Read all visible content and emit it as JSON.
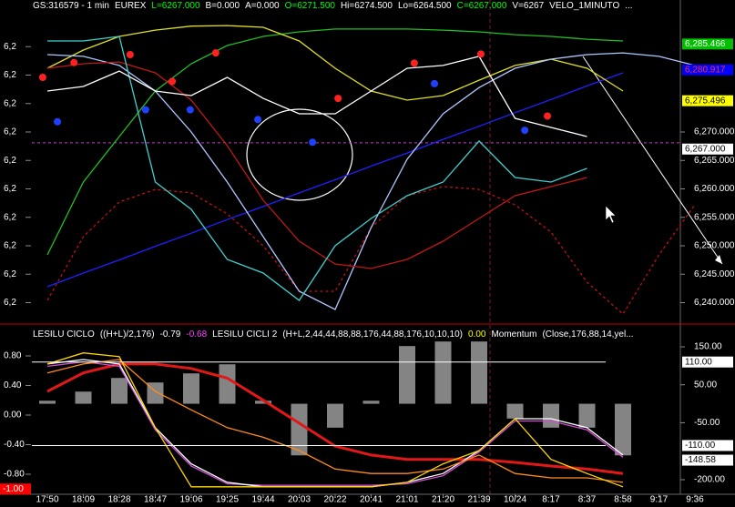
{
  "chart_data": [
    {
      "type": "line",
      "header": [
        {
          "text": "GS:316579 - 1 min",
          "color": "#ffffff"
        },
        {
          "text": "EUREX",
          "color": "#ffffff"
        },
        {
          "text": "L=6267.000",
          "color": "#00ff00"
        },
        {
          "text": "B=0.000",
          "color": "#ffffff"
        },
        {
          "text": "A=0.000",
          "color": "#ffffff"
        },
        {
          "text": "O=6271.500",
          "color": "#00ff00"
        },
        {
          "text": "Hi=6274.500",
          "color": "#ffffff"
        },
        {
          "text": "Lo=6264.500",
          "color": "#ffffff"
        },
        {
          "text": "C=6267.000",
          "color": "#00ff00"
        },
        {
          "text": "V=6267",
          "color": "#ffffff"
        },
        {
          "text": "VELO_1MINUTO",
          "color": "#ffffff"
        },
        {
          "text": "...",
          "color": "#ffffff"
        }
      ],
      "ylim": [
        6236.4,
        6293.2
      ],
      "yticks_left": [
        {
          "value": 6285,
          "label": "6,2"
        },
        {
          "value": 6280,
          "label": "6,2"
        },
        {
          "value": 6275,
          "label": "6,2"
        },
        {
          "value": 6270,
          "label": "6,2"
        },
        {
          "value": 6265,
          "label": "6,2"
        },
        {
          "value": 6260,
          "label": "6,2"
        },
        {
          "value": 6255,
          "label": "6,2"
        },
        {
          "value": 6250,
          "label": "6,2"
        },
        {
          "value": 6245,
          "label": "6,2"
        },
        {
          "value": 6240,
          "label": "6,2"
        }
      ],
      "yticks": [
        {
          "value": 6270,
          "label": "6,270.000"
        },
        {
          "value": 6265,
          "label": "6,265.000"
        },
        {
          "value": 6260,
          "label": "6,260.000"
        },
        {
          "value": 6255,
          "label": "6,255.000"
        },
        {
          "value": 6250,
          "label": "6,250.000"
        },
        {
          "value": 6245,
          "label": "6,245.000"
        },
        {
          "value": 6240,
          "label": "6,240.000"
        }
      ],
      "price_labels": [
        {
          "value": 6285.466,
          "label": "6,285.466",
          "color": "#00c000",
          "text_color": "#ffffff"
        },
        {
          "value": 6280.917,
          "label": "6,280.917",
          "color": "#0000ff",
          "text_color": "#ff3030"
        },
        {
          "value": 6275.496,
          "label": "6,275.496",
          "color": "#ffff00",
          "text_color": "#000000"
        },
        {
          "value": 6267.0,
          "label": "6,267.000",
          "color": "#ffffff",
          "text_color": "#000000"
        }
      ],
      "hline": {
        "value": 6268.1,
        "color": "#c040c0"
      },
      "series": [
        {
          "color": "#c01010",
          "dash": true,
          "values": [
            6240.4,
            6251.6,
            6257.7,
            6259.9,
            6259.3,
            6255.6,
            6250,
            6242,
            6242,
            6253.2,
            6258.8,
            6260.4,
            6259.9,
            6257.2,
            6252.4,
            6243.6,
            6238,
            6248.4,
            6257.2
          ]
        },
        {
          "color": "#2020ff",
          "values": [
            6242.8,
            6245.2,
            6247.5,
            6249.9,
            6252.2,
            6254.6,
            6256.9,
            6259.3,
            6261.6,
            6264,
            6266.3,
            6268.7,
            6271,
            6273.4,
            6275.7,
            6278.1,
            6280.4,
            null,
            null
          ]
        },
        {
          "color": "#20c020",
          "values": [
            6248.4,
            6261.2,
            6269.2,
            6277.2,
            6282,
            6285.2,
            6286.8,
            6287.6,
            6288.1,
            6288.1,
            6288.1,
            6287.9,
            6287.6,
            6287.1,
            6286.8,
            6286.3,
            6286,
            null,
            null
          ]
        },
        {
          "color": "#e0e020",
          "values": [
            6281.2,
            6284.4,
            6286.8,
            6287.9,
            6288.6,
            6288.7,
            6288.4,
            6286,
            6281.2,
            6277.2,
            6275.6,
            6276.4,
            6279.1,
            6281.7,
            6282.8,
            6281.2,
            6277.2,
            null,
            null
          ]
        },
        {
          "color": "#b0c8ff",
          "values": [
            6283.6,
            6283.3,
            6281.7,
            6277.2,
            6270,
            6261.2,
            6251.6,
            6242,
            6238.8,
            6253.2,
            6265.2,
            6273.2,
            6277.8,
            6281.2,
            6282.8,
            6283.6,
            6283.9,
            6283.3,
            6281.7
          ]
        },
        {
          "color": "#c01818",
          "values": [
            6281.2,
            6282,
            6282.3,
            6280.4,
            6275.6,
            6267.6,
            6258,
            6250.8,
            6246.8,
            6246,
            6247.6,
            6250.8,
            6254.8,
            6258.8,
            6260.4,
            6262,
            null,
            null,
            null
          ]
        },
        {
          "color": "#40d0d0",
          "values": [
            6286,
            6286,
            6286.8,
            6261.2,
            6256.4,
            6247.6,
            6245.2,
            6240.4,
            6250,
            6254.8,
            6258.8,
            6261.2,
            6268.4,
            6262,
            6261.2,
            6263.6,
            null,
            null,
            null
          ]
        },
        {
          "color": "#ffffff",
          "values": [
            6277.2,
            6278,
            6280.7,
            6277.2,
            6276.4,
            6279.6,
            6275.9,
            6273.2,
            6273.2,
            6277.2,
            6281.2,
            6281.7,
            6283.3,
            6272.4,
            6270.8,
            6269.2,
            null,
            null,
            null
          ]
        }
      ],
      "points": [
        {
          "color": "#ff2020",
          "x": [
            -0.13,
            0.74,
            2.3,
            3.47,
            4.68,
            8.08,
            10.2,
            12.05,
            13.9
          ],
          "values": [
            6279.6,
            6282.2,
            6283.6,
            6278.9,
            6283.9,
            6275.9,
            6282.1,
            6283.7,
            6272.8
          ]
        },
        {
          "color": "#2040ff",
          "x": [
            0.28,
            2.73,
            3.97,
            5.85,
            7.37,
            10.76,
            13.27
          ],
          "values": [
            6271.8,
            6273.9,
            6273.9,
            6272.2,
            6268.2,
            6278.5,
            6270.3
          ]
        }
      ]
    },
    {
      "type": "line",
      "header": [
        {
          "text": "LESILU CICLO",
          "color": "#ffffff"
        },
        {
          "text": "((H+L)/2,176)",
          "color": "#ffffff"
        },
        {
          "text": "-0.79",
          "color": "#ffffff"
        },
        {
          "text": "-0.68",
          "color": "#ff40ff"
        },
        {
          "text": "LESILU CICLI 2",
          "color": "#ffffff"
        },
        {
          "text": "(H+L,2,44,44,88,88,176,44,88,176,10,10,10)",
          "color": "#ffffff"
        },
        {
          "text": "0.00",
          "color": "#ffff00"
        },
        {
          "text": "Momentum",
          "color": "#ffffff"
        },
        {
          "text": "(Close,176,88,14,yel...",
          "color": "#ffffff"
        }
      ],
      "categories": [
        "17:50",
        "18:09",
        "18:28",
        "18:47",
        "19:06",
        "19:25",
        "19:44",
        "20:03",
        "20:22",
        "20:41",
        "21:01",
        "21:20",
        "21:39",
        "10/24",
        "8:17",
        "8:37",
        "8:58",
        "9:17",
        "9:36"
      ],
      "ylim": [
        -1.071,
        1.206
      ],
      "yticks": [
        {
          "value": 0.8,
          "label": "0.80"
        },
        {
          "value": 0.4,
          "label": "0.40"
        },
        {
          "value": 0,
          "label": "0.00"
        },
        {
          "value": -0.4,
          "label": "-0.40"
        },
        {
          "value": -0.8,
          "label": "-0.80"
        }
      ],
      "y2lim": [
        -238.4,
        205.2
      ],
      "y2ticks": [
        {
          "value": 150,
          "label": "150.00"
        },
        {
          "value": 50,
          "label": "50.00"
        },
        {
          "value": -50,
          "label": "-50.00"
        },
        {
          "value": -200,
          "label": "-200.00"
        }
      ],
      "price_labels": [
        {
          "value": 110,
          "label": "110.00",
          "axis": "y2",
          "color": "#ffffff",
          "text_color": "#000000",
          "line": true
        },
        {
          "value": -110,
          "label": "-110.00",
          "axis": "y2",
          "color": "#ffffff",
          "text_color": "#000000",
          "line": true
        },
        {
          "value": -148.58,
          "label": "-148.58",
          "axis": "y2",
          "color": "#ffffff",
          "text_color": "#000000"
        },
        {
          "value": -1.0,
          "label": "-1.00",
          "side": "left",
          "color": "#ff0000",
          "text_color": "#ffffff"
        }
      ],
      "series": [
        {
          "type": "bar",
          "axis": "y2",
          "color": "#b0b0b0",
          "values": [
            8,
            32,
            68,
            56,
            80,
            104,
            8,
            -136,
            -63,
            8,
            152,
            164,
            164,
            -39,
            -63,
            -63,
            -136,
            null,
            null
          ]
        },
        {
          "color": "#e01818",
          "width": 3,
          "values": [
            0.32,
            0.57,
            0.69,
            0.69,
            0.63,
            0.5,
            0.2,
            -0.11,
            -0.42,
            -0.54,
            -0.6,
            -0.6,
            -0.6,
            -0.64,
            -0.69,
            -0.73,
            -0.79,
            null,
            null
          ]
        },
        {
          "color": "#d050d0",
          "values": [
            0.66,
            0.72,
            0.66,
            -0.2,
            -0.69,
            -0.93,
            -0.95,
            -0.95,
            -0.95,
            -0.95,
            -0.93,
            -0.82,
            -0.5,
            -0.08,
            -0.08,
            -0.2,
            -0.57,
            null,
            null
          ]
        },
        {
          "color": "#ffffff",
          "values": [
            0.69,
            0.75,
            0.69,
            -0.17,
            -0.66,
            -0.91,
            -0.97,
            -0.97,
            -0.97,
            -0.97,
            -0.91,
            -0.79,
            -0.48,
            -0.05,
            -0.05,
            -0.17,
            -0.54,
            null,
            null
          ]
        },
        {
          "color": "#ff8c1a",
          "values": [
            0.57,
            0.69,
            0.75,
            0.32,
            0.07,
            -0.17,
            -0.3,
            -0.48,
            -0.73,
            -0.79,
            -0.79,
            -0.73,
            -0.54,
            -0.79,
            -0.85,
            -0.85,
            -0.91,
            null,
            null
          ]
        },
        {
          "color": "#ffd700",
          "values": [
            0.69,
            0.84,
            0.79,
            -0.17,
            -0.97,
            -0.97,
            -0.97,
            -0.97,
            -0.97,
            -0.97,
            -0.91,
            -0.66,
            -0.48,
            -0.05,
            -0.6,
            -0.79,
            -0.97,
            null,
            null
          ]
        }
      ]
    }
  ]
}
